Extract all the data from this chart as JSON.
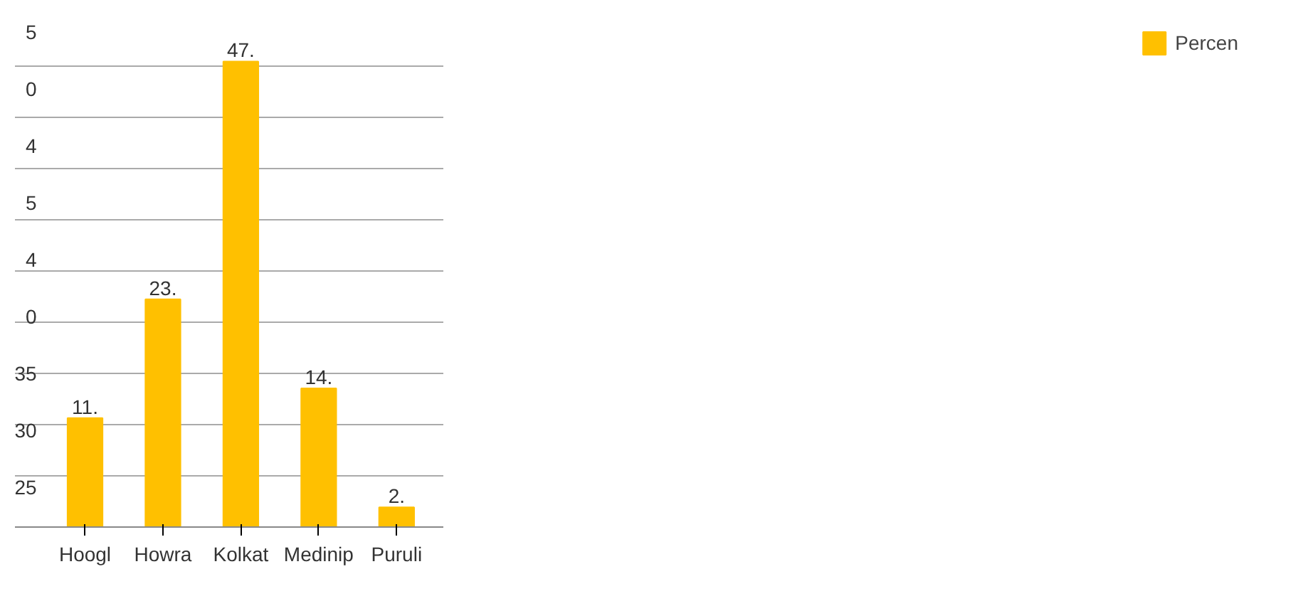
{
  "chart_data": {
    "type": "bar",
    "categories": [
      "Hoogl",
      "Howra",
      "Kolkat",
      "Medinip",
      "Puruli"
    ],
    "series": [
      {
        "name": "Percen",
        "color": "#ffc000",
        "values": [
          11,
          23,
          47,
          14,
          2
        ],
        "value_labels": [
          "11.",
          "23.",
          "47.",
          "14.",
          "2."
        ]
      }
    ],
    "annotations": [
      "5",
      "0",
      "4",
      "5",
      "4",
      "0",
      "35",
      "30",
      "25"
    ],
    "grid": "y",
    "legend": "right"
  }
}
